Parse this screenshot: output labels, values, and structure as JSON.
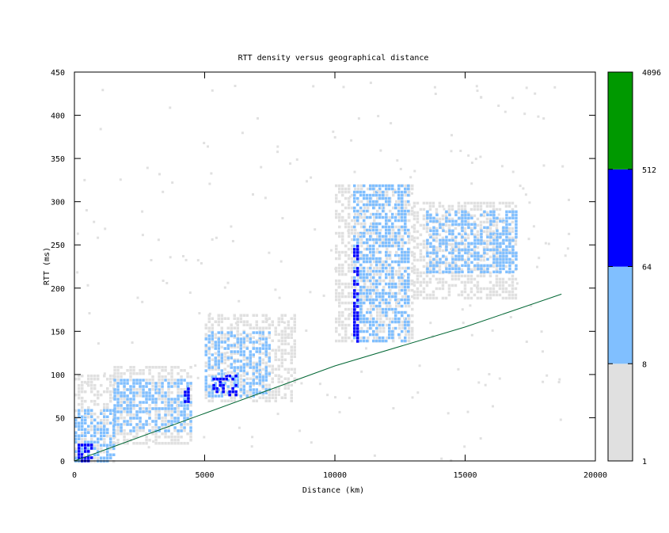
{
  "chart_data": {
    "type": "heatmap",
    "title": "RTT density versus geographical distance",
    "xlabel": "Distance (km)",
    "ylabel": "RTT (ms)",
    "xlim": [
      0,
      20000
    ],
    "ylim": [
      0,
      450
    ],
    "xticks": [
      "0",
      "5000",
      "10000",
      "15000",
      "20000"
    ],
    "yticks": [
      "0",
      "50",
      "100",
      "150",
      "200",
      "250",
      "300",
      "350",
      "400",
      "450"
    ],
    "colorbar": {
      "ticks": [
        "1",
        "8",
        "64",
        "512",
        "4096"
      ],
      "bands": [
        {
          "from": 1,
          "to": 8,
          "color": "#e0e0e0"
        },
        {
          "from": 8,
          "to": 64,
          "color": "#80bfff"
        },
        {
          "from": 64,
          "to": 512,
          "color": "#0000ff"
        },
        {
          "from": 512,
          "to": 4096,
          "color": "#009900"
        }
      ]
    },
    "density_clusters": [
      {
        "band": "light",
        "x": [
          0,
          1500
        ],
        "y": [
          0,
          100
        ]
      },
      {
        "band": "light",
        "x": [
          1500,
          4500
        ],
        "y": [
          20,
          110
        ]
      },
      {
        "band": "light",
        "x": [
          5000,
          8500
        ],
        "y": [
          70,
          170
        ]
      },
      {
        "band": "light",
        "x": [
          10000,
          13000
        ],
        "y": [
          140,
          320
        ]
      },
      {
        "band": "light",
        "x": [
          13000,
          17000
        ],
        "y": [
          190,
          300
        ]
      },
      {
        "band": "medium",
        "x": [
          0,
          1500
        ],
        "y": [
          0,
          60
        ]
      },
      {
        "band": "medium",
        "x": [
          1500,
          4500
        ],
        "y": [
          35,
          95
        ]
      },
      {
        "band": "medium",
        "x": [
          5000,
          7500
        ],
        "y": [
          75,
          150
        ]
      },
      {
        "band": "medium",
        "x": [
          10700,
          12800
        ],
        "y": [
          140,
          320
        ]
      },
      {
        "band": "medium",
        "x": [
          13500,
          17000
        ],
        "y": [
          220,
          290
        ]
      },
      {
        "band": "high",
        "x": [
          0,
          700
        ],
        "y": [
          0,
          20
        ]
      },
      {
        "band": "high",
        "x": [
          5300,
          6200
        ],
        "y": [
          75,
          100
        ]
      },
      {
        "band": "high",
        "x": [
          10700,
          10900
        ],
        "y": [
          140,
          250
        ]
      },
      {
        "band": "high",
        "x": [
          4200,
          4400
        ],
        "y": [
          70,
          85
        ]
      }
    ],
    "reference_line": {
      "color": "#006633",
      "points": [
        [
          0,
          0
        ],
        [
          5000,
          55
        ],
        [
          10000,
          110
        ],
        [
          15000,
          155
        ],
        [
          18700,
          193
        ]
      ]
    }
  }
}
